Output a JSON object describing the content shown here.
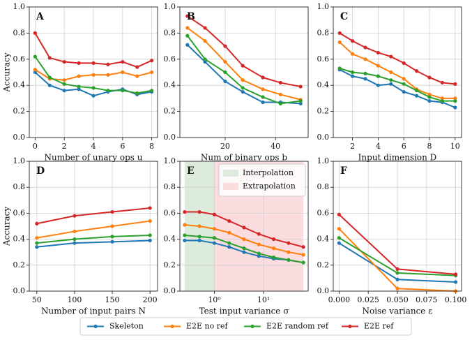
{
  "chart_data": [
    {
      "type": "line",
      "title": "A",
      "ylabel": "Accuracy",
      "xlabel": "Number of unary ops u",
      "x": [
        0,
        1,
        2,
        3,
        4,
        5,
        6,
        7,
        8
      ],
      "xlim": [
        -0.4,
        8.4
      ],
      "xticks": [
        0,
        2,
        4,
        6,
        8
      ],
      "ylim": [
        0,
        1
      ],
      "yticks": [
        {
          "value": 0,
          "label": "0.0"
        },
        0.2,
        0.4,
        0.6,
        0.8,
        {
          "value": 1,
          "label": "1.0"
        }
      ],
      "grid": true,
      "series": [
        {
          "color": "#1f77b4",
          "values": [
            0.5,
            0.4,
            0.36,
            0.37,
            0.32,
            0.35,
            0.37,
            0.33,
            0.35
          ]
        },
        {
          "color": "#ff7f0e",
          "values": [
            0.52,
            0.45,
            0.44,
            0.47,
            0.48,
            0.48,
            0.5,
            0.47,
            0.5
          ]
        },
        {
          "color": "#2ca02c",
          "values": [
            0.62,
            0.46,
            0.41,
            0.39,
            0.38,
            0.36,
            0.36,
            0.34,
            0.36
          ]
        },
        {
          "color": "#d62728",
          "values": [
            0.8,
            0.61,
            0.58,
            0.57,
            0.57,
            0.56,
            0.58,
            0.54,
            0.59
          ]
        }
      ]
    },
    {
      "type": "line",
      "title": "B",
      "xlabel": "Num of binary ops b",
      "x": [
        5,
        12,
        20,
        27,
        35,
        42,
        50
      ],
      "xlim": [
        2,
        53
      ],
      "xticks": [
        20,
        40
      ],
      "ylim": [
        0,
        1
      ],
      "yticks": [
        {
          "value": 0,
          "label": "0.0"
        },
        0.2,
        0.4,
        0.6,
        0.8,
        {
          "value": 1,
          "label": "1.0"
        }
      ],
      "grid": true,
      "series": [
        {
          "color": "#1f77b4",
          "values": [
            0.71,
            0.58,
            0.43,
            0.35,
            0.27,
            0.27,
            0.26
          ]
        },
        {
          "color": "#ff7f0e",
          "values": [
            0.84,
            0.74,
            0.58,
            0.44,
            0.37,
            0.33,
            0.29
          ]
        },
        {
          "color": "#2ca02c",
          "values": [
            0.78,
            0.6,
            0.5,
            0.38,
            0.31,
            0.26,
            0.28
          ]
        },
        {
          "color": "#d62728",
          "values": [
            0.93,
            0.84,
            0.7,
            0.55,
            0.46,
            0.42,
            0.39
          ]
        }
      ]
    },
    {
      "type": "line",
      "title": "C",
      "xlabel": "Input dimension D",
      "x": [
        1,
        2,
        3,
        4,
        5,
        6,
        7,
        8,
        9,
        10
      ],
      "xlim": [
        0.5,
        10.5
      ],
      "xticks": [
        2,
        4,
        6,
        8,
        10
      ],
      "ylim": [
        0,
        1
      ],
      "yticks": [
        {
          "value": 0,
          "label": "0.0"
        },
        0.2,
        0.4,
        0.6,
        0.8,
        {
          "value": 1,
          "label": "1.0"
        }
      ],
      "grid": true,
      "series": [
        {
          "color": "#1f77b4",
          "values": [
            0.52,
            0.47,
            0.45,
            0.4,
            0.41,
            0.35,
            0.32,
            0.28,
            0.27,
            0.23
          ]
        },
        {
          "color": "#ff7f0e",
          "values": [
            0.73,
            0.64,
            0.6,
            0.55,
            0.5,
            0.45,
            0.37,
            0.33,
            0.3,
            0.3
          ]
        },
        {
          "color": "#2ca02c",
          "values": [
            0.53,
            0.5,
            0.49,
            0.47,
            0.44,
            0.41,
            0.36,
            0.31,
            0.28,
            0.28
          ]
        },
        {
          "color": "#d62728",
          "values": [
            0.8,
            0.74,
            0.69,
            0.65,
            0.62,
            0.57,
            0.51,
            0.46,
            0.42,
            0.41
          ]
        }
      ]
    },
    {
      "type": "line",
      "title": "D",
      "ylabel": "Accuracy",
      "xlabel": "Number of input pairs N",
      "x": [
        50,
        100,
        150,
        200
      ],
      "xlim": [
        40,
        210
      ],
      "xticks": [
        50,
        100,
        150,
        200
      ],
      "ylim": [
        0,
        1
      ],
      "yticks": [
        {
          "value": 0,
          "label": "0.0"
        },
        0.2,
        0.4,
        0.6,
        0.8,
        {
          "value": 1,
          "label": "1.0"
        }
      ],
      "grid": true,
      "series": [
        {
          "color": "#1f77b4",
          "values": [
            0.34,
            0.37,
            0.38,
            0.39
          ]
        },
        {
          "color": "#ff7f0e",
          "values": [
            0.41,
            0.46,
            0.5,
            0.54
          ]
        },
        {
          "color": "#2ca02c",
          "values": [
            0.37,
            0.4,
            0.42,
            0.43
          ]
        },
        {
          "color": "#d62728",
          "values": [
            0.52,
            0.58,
            0.61,
            0.64
          ]
        }
      ]
    },
    {
      "type": "line",
      "title": "E",
      "xlabel": "Test input variance σ",
      "xscale": "log",
      "x": [
        0.25,
        0.5,
        1,
        2,
        4,
        8,
        16,
        32,
        64
      ],
      "xlim": [
        0.2,
        80
      ],
      "xticks": [
        {
          "value": 1,
          "label": "10⁰"
        },
        {
          "value": 10,
          "label": "10¹"
        }
      ],
      "ylim": [
        0,
        1
      ],
      "yticks": [
        {
          "value": 0,
          "label": "0.0"
        },
        0.2,
        0.4,
        0.6,
        0.8,
        {
          "value": 1,
          "label": "1.0"
        }
      ],
      "grid": true,
      "regions": [
        {
          "name": "Interpolation",
          "color": "#dcebdc",
          "x": [
            0.25,
            1
          ]
        },
        {
          "name": "Extrapolation",
          "color": "#fbdcdf",
          "x": [
            1,
            64
          ]
        }
      ],
      "legend_position": "upper right",
      "series": [
        {
          "color": "#1f77b4",
          "values": [
            0.39,
            0.39,
            0.37,
            0.34,
            0.3,
            0.27,
            0.25,
            0.24,
            0.22
          ]
        },
        {
          "color": "#ff7f0e",
          "values": [
            0.51,
            0.5,
            0.48,
            0.45,
            0.4,
            0.36,
            0.33,
            0.3,
            0.28
          ]
        },
        {
          "color": "#2ca02c",
          "values": [
            0.43,
            0.42,
            0.41,
            0.37,
            0.33,
            0.29,
            0.26,
            0.24,
            0.22
          ]
        },
        {
          "color": "#d62728",
          "values": [
            0.61,
            0.61,
            0.59,
            0.54,
            0.49,
            0.44,
            0.4,
            0.37,
            0.34
          ]
        }
      ]
    },
    {
      "type": "line",
      "title": "F",
      "xlabel": "Noise variance ε",
      "x": [
        0,
        0.05,
        0.1
      ],
      "xlim": [
        -0.005,
        0.105
      ],
      "xticks": [
        {
          "value": 0,
          "label": "0.000"
        },
        0.025,
        {
          "value": 0.05,
          "label": "0.050"
        },
        0.075,
        {
          "value": 0.1,
          "label": "0.100"
        }
      ],
      "ylim": [
        0,
        1
      ],
      "yticks": [
        {
          "value": 0,
          "label": "0.0"
        },
        0.2,
        0.4,
        0.6,
        0.8,
        {
          "value": 1,
          "label": "1.0"
        }
      ],
      "grid": true,
      "series": [
        {
          "color": "#1f77b4",
          "values": [
            0.37,
            0.09,
            0.07
          ]
        },
        {
          "color": "#ff7f0e",
          "values": [
            0.48,
            0.02,
            0.0
          ]
        },
        {
          "color": "#2ca02c",
          "values": [
            0.41,
            0.14,
            0.12
          ]
        },
        {
          "color": "#d62728",
          "values": [
            0.59,
            0.17,
            0.13
          ]
        }
      ]
    }
  ],
  "legend": [
    {
      "name": "Skeleton",
      "color": "#1f77b4"
    },
    {
      "name": "E2E no ref",
      "color": "#ff7f0e"
    },
    {
      "name": "E2E random ref",
      "color": "#2ca02c"
    },
    {
      "name": "E2E ref",
      "color": "#d62728"
    }
  ]
}
